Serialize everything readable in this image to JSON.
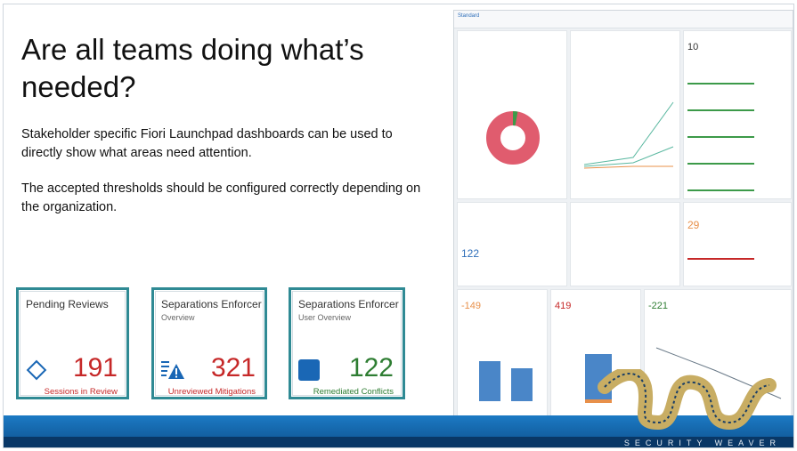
{
  "slide": {
    "title": "Are all teams doing what’s needed?",
    "paragraph1": "Stakeholder specific Fiori Launchpad dashboards can be used to directly show what areas need attention.",
    "paragraph2": "The accepted thresholds should be configured correctly depending on the organization."
  },
  "tiles": [
    {
      "title": "Pending Reviews",
      "subtitle": "",
      "value": "191",
      "caption": "Sessions in Review",
      "icon": "diamond-icon",
      "color": "#c62828"
    },
    {
      "title": "Separations Enforcer",
      "subtitle": "Overview",
      "value": "321",
      "caption": "Unreviewed Mitigations",
      "icon": "warning-list-icon",
      "color": "#c62828"
    },
    {
      "title": "Separations Enforcer",
      "subtitle": "User Overview",
      "value": "122",
      "caption": "Remediated Conflicts",
      "icon": "square-icon",
      "color": "#2e7d32"
    }
  ],
  "dashboard": {
    "view_label": "Standard",
    "kpis": {
      "top_right": "10",
      "mid_right": "29",
      "mid_left": "122",
      "bottom_1": "-149",
      "bottom_2": "419",
      "bottom_3": "-221"
    },
    "accent_red": "#c62828",
    "accent_green": "#3c9a49",
    "accent_blue": "#2f6fba"
  },
  "brand": {
    "name": "SECURITY WEAVER",
    "band_color": "#1c7ac4",
    "logo_color": "#c8ad63"
  }
}
